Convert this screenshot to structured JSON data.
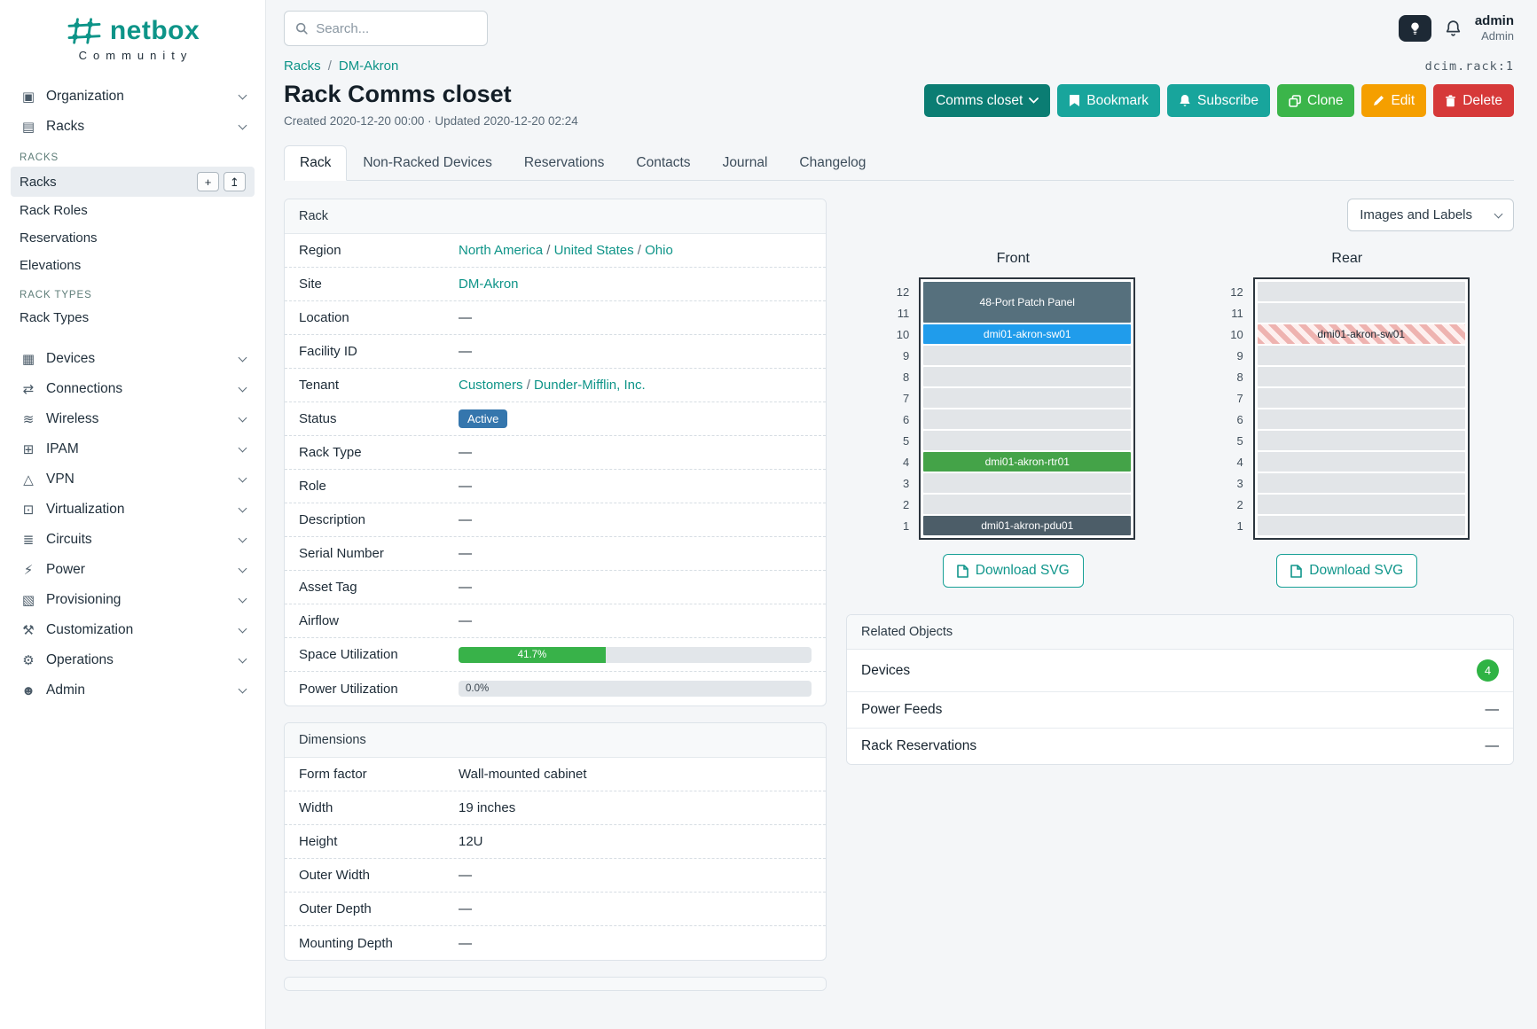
{
  "brand": {
    "name": "netbox",
    "tagline": "Community"
  },
  "topbar": {
    "search_placeholder": "Search...",
    "user": {
      "name": "admin",
      "role": "Admin"
    }
  },
  "sidebar": {
    "items": [
      {
        "type": "top",
        "label": "Organization",
        "icon": "building-icon",
        "glyph": "▣"
      },
      {
        "type": "top",
        "label": "Racks",
        "icon": "rack-icon",
        "glyph": "▤",
        "expanded": true
      },
      {
        "type": "header",
        "label": "RACKS"
      },
      {
        "type": "sub",
        "label": "Racks",
        "active": true,
        "buttons": [
          {
            "name": "add-rack-button",
            "glyph": "+"
          },
          {
            "name": "import-rack-button",
            "glyph": "↥"
          }
        ]
      },
      {
        "type": "sub",
        "label": "Rack Roles"
      },
      {
        "type": "sub",
        "label": "Reservations"
      },
      {
        "type": "sub",
        "label": "Elevations"
      },
      {
        "type": "header",
        "label": "RACK TYPES"
      },
      {
        "type": "sub",
        "label": "Rack Types"
      },
      {
        "type": "top",
        "label": "Devices",
        "icon": "devices-icon",
        "glyph": "▦",
        "gap": true
      },
      {
        "type": "top",
        "label": "Connections",
        "icon": "connections-icon",
        "glyph": "⇄"
      },
      {
        "type": "top",
        "label": "Wireless",
        "icon": "wifi-icon",
        "glyph": "≋"
      },
      {
        "type": "top",
        "label": "IPAM",
        "icon": "ipam-grid-icon",
        "glyph": "⊞"
      },
      {
        "type": "top",
        "label": "VPN",
        "icon": "vpn-icon",
        "glyph": "△"
      },
      {
        "type": "top",
        "label": "Virtualization",
        "icon": "monitor-icon",
        "glyph": "⊡"
      },
      {
        "type": "top",
        "label": "Circuits",
        "icon": "circuits-icon",
        "glyph": "≣"
      },
      {
        "type": "top",
        "label": "Power",
        "icon": "lightning-icon",
        "glyph": "⚡"
      },
      {
        "type": "top",
        "label": "Provisioning",
        "icon": "provisioning-icon",
        "glyph": "▧"
      },
      {
        "type": "top",
        "label": "Customization",
        "icon": "tools-icon",
        "glyph": "⚒"
      },
      {
        "type": "top",
        "label": "Operations",
        "icon": "gear-icon",
        "glyph": "⚙"
      },
      {
        "type": "top",
        "label": "Admin",
        "icon": "users-icon",
        "glyph": "☻"
      }
    ]
  },
  "page": {
    "breadcrumbs": [
      {
        "label": "Racks"
      },
      {
        "label": "DM-Akron"
      }
    ],
    "object_ref": "dcim.rack:1",
    "title": "Rack Comms closet",
    "meta": "Created 2020-12-20 00:00 · Updated 2020-12-20 02:24",
    "buttons": {
      "group": "Comms closet",
      "bookmark": "Bookmark",
      "subscribe": "Subscribe",
      "clone": "Clone",
      "edit": "Edit",
      "delete": "Delete"
    },
    "tabs": [
      {
        "label": "Rack",
        "active": true
      },
      {
        "label": "Non-Racked Devices"
      },
      {
        "label": "Reservations"
      },
      {
        "label": "Contacts"
      },
      {
        "label": "Journal"
      },
      {
        "label": "Changelog"
      }
    ]
  },
  "rack_card": {
    "title": "Rack",
    "rows": [
      {
        "label": "Region",
        "type": "links",
        "links": [
          "North America",
          "United States",
          "Ohio"
        ]
      },
      {
        "label": "Site",
        "type": "links",
        "links": [
          "DM-Akron"
        ]
      },
      {
        "label": "Location",
        "value": "—"
      },
      {
        "label": "Facility ID",
        "value": "—"
      },
      {
        "label": "Tenant",
        "type": "links",
        "links": [
          "Customers",
          "Dunder-Mifflin, Inc."
        ]
      },
      {
        "label": "Status",
        "type": "badge",
        "value": "Active"
      },
      {
        "label": "Rack Type",
        "value": "—"
      },
      {
        "label": "Role",
        "value": "—"
      },
      {
        "label": "Description",
        "value": "—"
      },
      {
        "label": "Serial Number",
        "value": "—"
      },
      {
        "label": "Asset Tag",
        "value": "—"
      },
      {
        "label": "Airflow",
        "value": "—"
      },
      {
        "label": "Space Utilization",
        "type": "progress",
        "value": "41.7%",
        "percent": 41.7
      },
      {
        "label": "Power Utilization",
        "type": "progress",
        "value": "0.0%",
        "percent": 0
      }
    ]
  },
  "dimensions_card": {
    "title": "Dimensions",
    "rows": [
      {
        "label": "Form factor",
        "value": "Wall-mounted cabinet"
      },
      {
        "label": "Width",
        "value": "19 inches"
      },
      {
        "label": "Height",
        "value": "12U"
      },
      {
        "label": "Outer Width",
        "value": "—"
      },
      {
        "label": "Outer Depth",
        "value": "—"
      },
      {
        "label": "Mounting Depth",
        "value": "—"
      }
    ]
  },
  "elevations": {
    "view_select": "Images and Labels",
    "download_label": "Download SVG",
    "unit_numbers": [
      "12",
      "11",
      "10",
      "9",
      "8",
      "7",
      "6",
      "5",
      "4",
      "3",
      "2",
      "1"
    ],
    "front": {
      "title": "Front",
      "units": [
        {
          "kind": "device",
          "label": "48-Port Patch Panel",
          "span": 2,
          "color": "#56707d"
        },
        {
          "kind": "device",
          "label": "dmi01-akron-sw01",
          "color": "#209ceb"
        },
        {
          "kind": "empty"
        },
        {
          "kind": "empty"
        },
        {
          "kind": "empty"
        },
        {
          "kind": "empty"
        },
        {
          "kind": "empty"
        },
        {
          "kind": "device",
          "label": "dmi01-akron-rtr01",
          "color": "#44a348"
        },
        {
          "kind": "empty"
        },
        {
          "kind": "empty"
        },
        {
          "kind": "device",
          "label": "dmi01-akron-pdu01",
          "color": "#4c5d68"
        }
      ]
    },
    "rear": {
      "title": "Rear",
      "units": [
        {
          "kind": "empty"
        },
        {
          "kind": "empty"
        },
        {
          "kind": "hatched",
          "label": "dmi01-akron-sw01"
        },
        {
          "kind": "empty"
        },
        {
          "kind": "empty"
        },
        {
          "kind": "empty"
        },
        {
          "kind": "empty"
        },
        {
          "kind": "empty"
        },
        {
          "kind": "empty"
        },
        {
          "kind": "empty"
        },
        {
          "kind": "empty"
        },
        {
          "kind": "empty"
        }
      ]
    }
  },
  "related": {
    "title": "Related Objects",
    "rows": [
      {
        "label": "Devices",
        "badge": "4"
      },
      {
        "label": "Power Feeds",
        "value": "—"
      },
      {
        "label": "Rack Reservations",
        "value": "—"
      }
    ]
  },
  "colors": {
    "accent_teal": "#0e9488",
    "button_group_teal": "#0b7d73",
    "button_action_teal": "#18a59c",
    "button_clone_green": "#3bb54a",
    "button_edit_orange": "#f59f00",
    "button_delete_red": "#d63939",
    "status_active_blue": "#3576ad",
    "progress_green": "#38b249",
    "count_badge_green": "#2fb344",
    "device_switch_blue": "#209ceb",
    "device_router_green": "#44a348",
    "device_pdu_slate": "#4c5d68",
    "device_patch_panel_slate": "#56707d"
  }
}
